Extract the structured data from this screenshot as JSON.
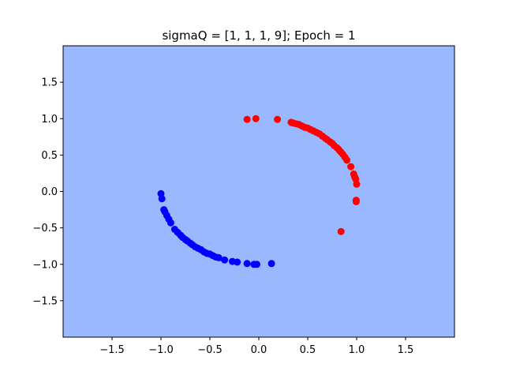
{
  "chart_data": {
    "type": "scatter",
    "title": "sigmaQ = [1, 1, 1, 9]; Epoch = 1",
    "xlabel": "",
    "ylabel": "",
    "xlim": [
      -2.0,
      2.0
    ],
    "ylim": [
      -2.0,
      2.0
    ],
    "xticks": [
      -1.5,
      -1.0,
      -0.5,
      0.0,
      0.5,
      1.0,
      1.5
    ],
    "xtick_labels": [
      "−1.5",
      "−1.0",
      "−0.5",
      "0.0",
      "0.5",
      "1.0",
      "1.5"
    ],
    "yticks": [
      -1.5,
      -1.0,
      -0.5,
      0.0,
      0.5,
      1.0,
      1.5
    ],
    "ytick_labels": [
      "−1.5",
      "−1.0",
      "−0.5",
      "0.0",
      "0.5",
      "1.0",
      "1.5"
    ],
    "grid": false,
    "legend": "none",
    "background_color": "#9ab8ff",
    "series": [
      {
        "color": "#ff0000",
        "points": [
          [
            -0.12,
            0.99
          ],
          [
            -0.03,
            1.0
          ],
          [
            0.19,
            0.99
          ],
          [
            0.33,
            0.95
          ],
          [
            0.35,
            0.94
          ],
          [
            0.38,
            0.93
          ],
          [
            0.41,
            0.92
          ],
          [
            0.44,
            0.9
          ],
          [
            0.47,
            0.88
          ],
          [
            0.5,
            0.87
          ],
          [
            0.53,
            0.85
          ],
          [
            0.56,
            0.83
          ],
          [
            0.59,
            0.81
          ],
          [
            0.62,
            0.79
          ],
          [
            0.65,
            0.76
          ],
          [
            0.68,
            0.73
          ],
          [
            0.7,
            0.71
          ],
          [
            0.73,
            0.68
          ],
          [
            0.75,
            0.66
          ],
          [
            0.77,
            0.63
          ],
          [
            0.8,
            0.6
          ],
          [
            0.82,
            0.57
          ],
          [
            0.84,
            0.54
          ],
          [
            0.86,
            0.51
          ],
          [
            0.88,
            0.47
          ],
          [
            0.9,
            0.43
          ],
          [
            0.94,
            0.34
          ],
          [
            0.97,
            0.24
          ],
          [
            0.98,
            0.2
          ],
          [
            0.99,
            0.17
          ],
          [
            1.0,
            0.1
          ],
          [
            0.995,
            -0.12
          ],
          [
            0.995,
            -0.14
          ],
          [
            0.84,
            -0.55
          ]
        ]
      },
      {
        "color": "#0000ff",
        "points": [
          [
            -1.0,
            -0.03
          ],
          [
            -0.99,
            -0.1
          ],
          [
            -0.97,
            -0.25
          ],
          [
            -0.96,
            -0.28
          ],
          [
            -0.94,
            -0.33
          ],
          [
            -0.92,
            -0.38
          ],
          [
            -0.9,
            -0.43
          ],
          [
            -0.86,
            -0.52
          ],
          [
            -0.83,
            -0.56
          ],
          [
            -0.8,
            -0.6
          ],
          [
            -0.78,
            -0.63
          ],
          [
            -0.75,
            -0.66
          ],
          [
            -0.73,
            -0.68
          ],
          [
            -0.7,
            -0.71
          ],
          [
            -0.68,
            -0.73
          ],
          [
            -0.65,
            -0.76
          ],
          [
            -0.62,
            -0.78
          ],
          [
            -0.59,
            -0.8
          ],
          [
            -0.56,
            -0.83
          ],
          [
            -0.53,
            -0.85
          ],
          [
            -0.5,
            -0.86
          ],
          [
            -0.47,
            -0.88
          ],
          [
            -0.44,
            -0.9
          ],
          [
            -0.41,
            -0.91
          ],
          [
            -0.35,
            -0.94
          ],
          [
            -0.27,
            -0.96
          ],
          [
            -0.22,
            -0.97
          ],
          [
            -0.12,
            -0.99
          ],
          [
            -0.05,
            -1.0
          ],
          [
            -0.02,
            -1.0
          ],
          [
            0.13,
            -0.99
          ]
        ]
      }
    ]
  }
}
